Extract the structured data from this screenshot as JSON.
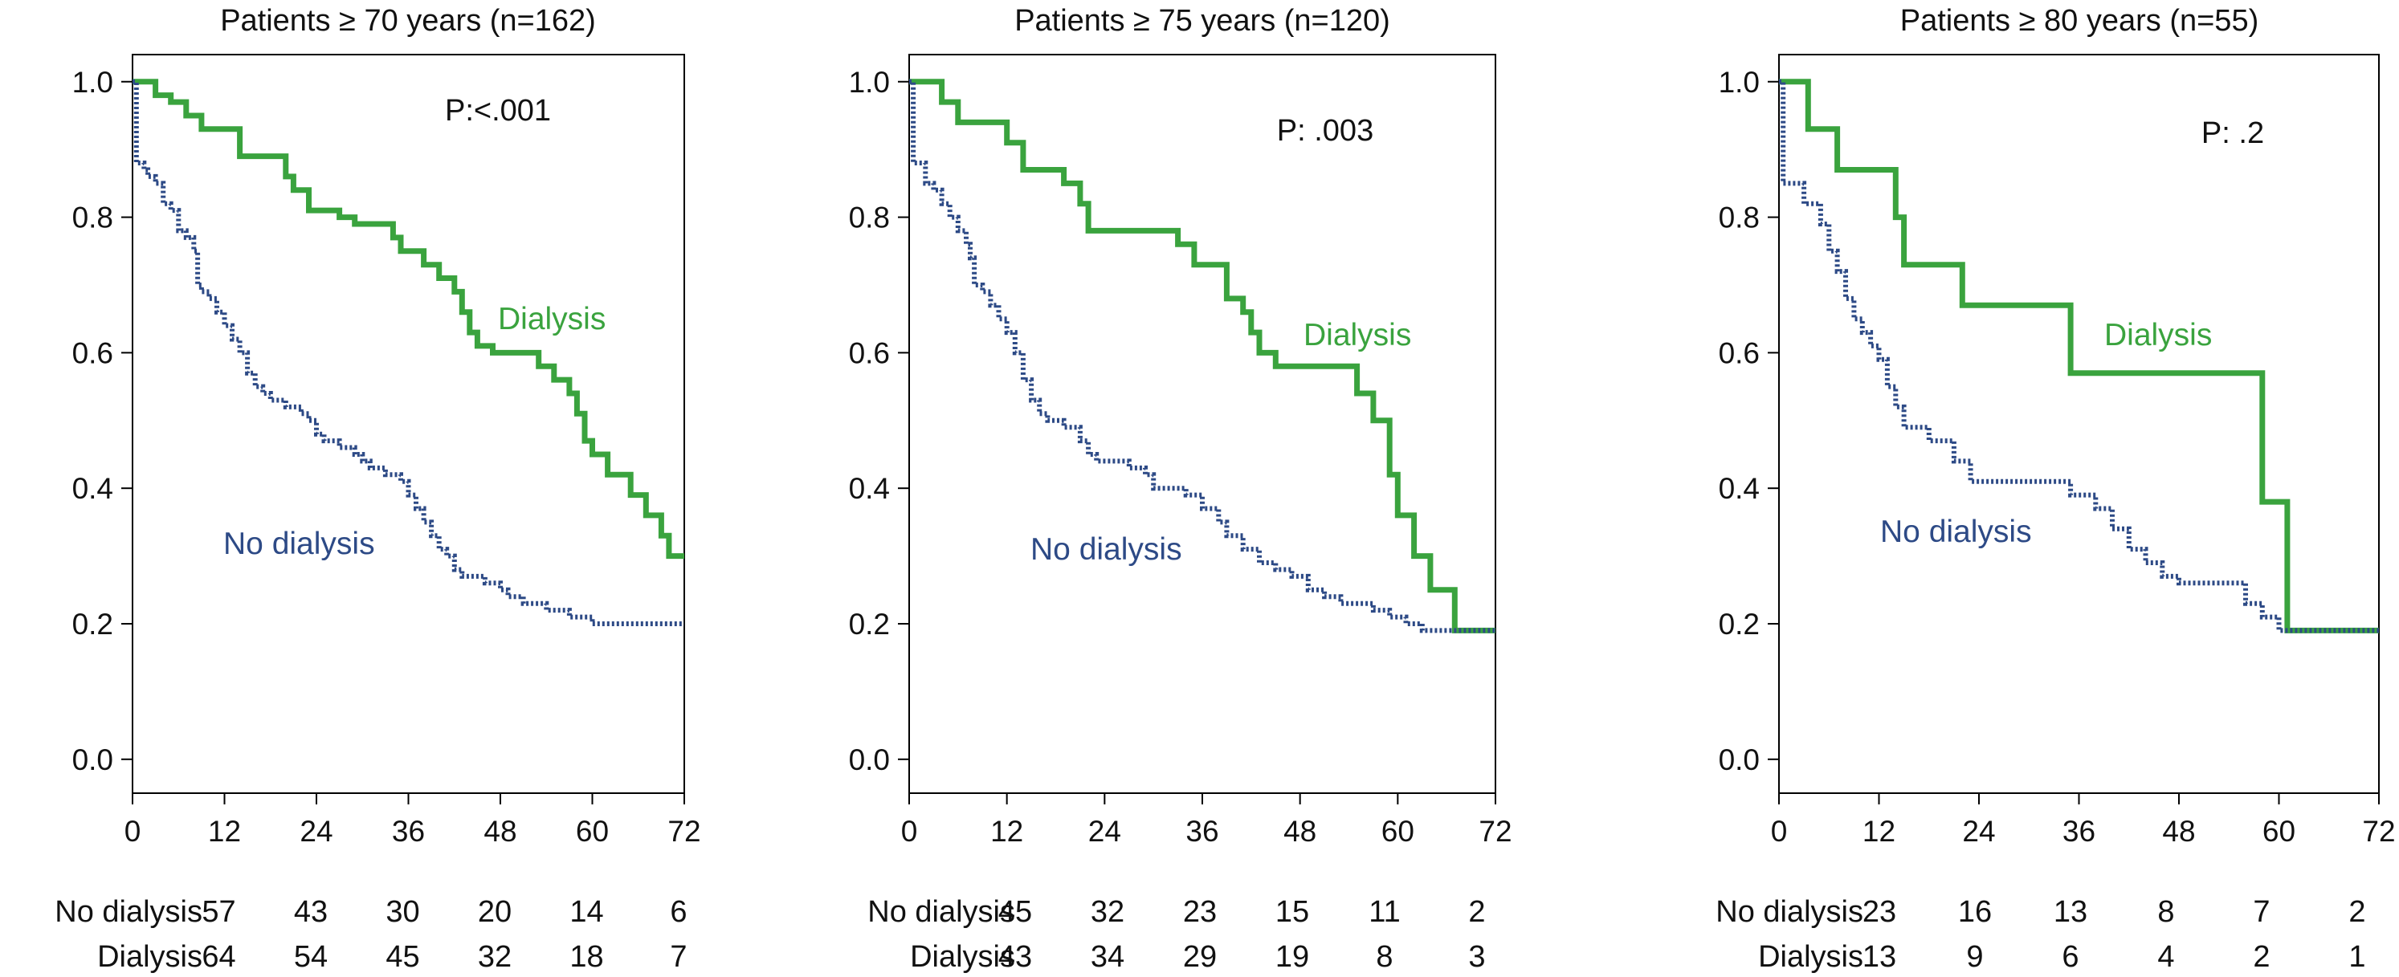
{
  "colors": {
    "dialysis": "#3aa33e",
    "no_dialysis": "#2d4a86",
    "axis": "#000000",
    "text": "#111111"
  },
  "chart_data": [
    {
      "type": "line",
      "title": "Patients ≥ 70 years (n=162)",
      "p_value": "P:<.001",
      "xticks": [
        "0",
        "12",
        "24",
        "36",
        "48",
        "60",
        "72"
      ],
      "yticks": [
        "0.0",
        "0.2",
        "0.4",
        "0.6",
        "0.8",
        "1.0"
      ],
      "xlim": [
        0,
        72
      ],
      "ylim": [
        -0.05,
        1.04
      ],
      "series": [
        {
          "name": "Dialysis",
          "style": "solid",
          "points": [
            [
              0,
              1.0
            ],
            [
              3,
              0.98
            ],
            [
              5,
              0.97
            ],
            [
              7,
              0.95
            ],
            [
              9,
              0.93
            ],
            [
              14,
              0.89
            ],
            [
              20,
              0.86
            ],
            [
              21,
              0.84
            ],
            [
              23,
              0.81
            ],
            [
              27,
              0.8
            ],
            [
              29,
              0.79
            ],
            [
              34,
              0.77
            ],
            [
              35,
              0.75
            ],
            [
              38,
              0.73
            ],
            [
              40,
              0.71
            ],
            [
              42,
              0.69
            ],
            [
              43,
              0.66
            ],
            [
              44,
              0.63
            ],
            [
              45,
              0.61
            ],
            [
              47,
              0.6
            ],
            [
              53,
              0.58
            ],
            [
              55,
              0.56
            ],
            [
              57,
              0.54
            ],
            [
              58,
              0.51
            ],
            [
              59,
              0.47
            ],
            [
              60,
              0.45
            ],
            [
              62,
              0.42
            ],
            [
              65,
              0.39
            ],
            [
              67,
              0.36
            ],
            [
              69,
              0.33
            ],
            [
              70,
              0.3
            ],
            [
              72,
              0.3
            ]
          ]
        },
        {
          "name": "No dialysis",
          "style": "dotted",
          "points": [
            [
              0,
              1.0
            ],
            [
              0.5,
              0.88
            ],
            [
              1.5,
              0.87
            ],
            [
              2,
              0.86
            ],
            [
              3,
              0.85
            ],
            [
              4,
              0.82
            ],
            [
              5,
              0.81
            ],
            [
              6,
              0.78
            ],
            [
              7,
              0.77
            ],
            [
              8,
              0.75
            ],
            [
              8.5,
              0.7
            ],
            [
              9,
              0.69
            ],
            [
              10,
              0.68
            ],
            [
              11,
              0.66
            ],
            [
              12,
              0.64
            ],
            [
              13,
              0.62
            ],
            [
              14,
              0.6
            ],
            [
              15,
              0.57
            ],
            [
              16,
              0.55
            ],
            [
              17,
              0.54
            ],
            [
              18,
              0.53
            ],
            [
              20,
              0.52
            ],
            [
              22,
              0.51
            ],
            [
              23,
              0.5
            ],
            [
              24,
              0.48
            ],
            [
              25,
              0.47
            ],
            [
              27,
              0.46
            ],
            [
              29,
              0.45
            ],
            [
              30,
              0.44
            ],
            [
              31,
              0.43
            ],
            [
              33,
              0.42
            ],
            [
              35,
              0.41
            ],
            [
              36,
              0.39
            ],
            [
              37,
              0.37
            ],
            [
              38,
              0.35
            ],
            [
              39,
              0.33
            ],
            [
              40,
              0.31
            ],
            [
              41,
              0.3
            ],
            [
              42,
              0.28
            ],
            [
              43,
              0.27
            ],
            [
              46,
              0.26
            ],
            [
              48,
              0.25
            ],
            [
              49,
              0.24
            ],
            [
              51,
              0.23
            ],
            [
              54,
              0.22
            ],
            [
              57,
              0.21
            ],
            [
              60,
              0.2
            ],
            [
              72,
              0.2
            ]
          ]
        }
      ],
      "labels": {
        "dialysis": "Dialysis",
        "no_dialysis": "No dialysis"
      },
      "risk_table": {
        "rows": [
          {
            "label": "No dialysis",
            "values": [
              "57",
              "43",
              "30",
              "20",
              "14",
              "6"
            ]
          },
          {
            "label": "Dialysis",
            "values": [
              "64",
              "54",
              "45",
              "32",
              "18",
              "7"
            ]
          }
        ]
      }
    },
    {
      "type": "line",
      "title": "Patients ≥ 75 years (n=120)",
      "p_value": "P: .003",
      "xticks": [
        "0",
        "12",
        "24",
        "36",
        "48",
        "60",
        "72"
      ],
      "yticks": [
        "0.0",
        "0.2",
        "0.4",
        "0.6",
        "0.8",
        "1.0"
      ],
      "xlim": [
        0,
        72
      ],
      "ylim": [
        -0.05,
        1.04
      ],
      "series": [
        {
          "name": "Dialysis",
          "style": "solid",
          "points": [
            [
              0,
              1.0
            ],
            [
              4,
              0.97
            ],
            [
              6,
              0.94
            ],
            [
              12,
              0.91
            ],
            [
              14,
              0.87
            ],
            [
              19,
              0.85
            ],
            [
              21,
              0.82
            ],
            [
              22,
              0.78
            ],
            [
              33,
              0.76
            ],
            [
              35,
              0.73
            ],
            [
              39,
              0.68
            ],
            [
              41,
              0.66
            ],
            [
              42,
              0.63
            ],
            [
              43,
              0.6
            ],
            [
              45,
              0.58
            ],
            [
              55,
              0.54
            ],
            [
              57,
              0.5
            ],
            [
              59,
              0.42
            ],
            [
              60,
              0.36
            ],
            [
              62,
              0.3
            ],
            [
              64,
              0.25
            ],
            [
              67,
              0.19
            ],
            [
              72,
              0.19
            ]
          ]
        },
        {
          "name": "No dialysis",
          "style": "dotted",
          "points": [
            [
              0,
              1.0
            ],
            [
              0.5,
              0.88
            ],
            [
              2,
              0.85
            ],
            [
              3,
              0.84
            ],
            [
              4,
              0.82
            ],
            [
              5,
              0.8
            ],
            [
              6,
              0.78
            ],
            [
              7,
              0.76
            ],
            [
              7.5,
              0.74
            ],
            [
              8,
              0.7
            ],
            [
              9,
              0.69
            ],
            [
              10,
              0.67
            ],
            [
              11,
              0.65
            ],
            [
              12,
              0.63
            ],
            [
              13,
              0.6
            ],
            [
              14,
              0.56
            ],
            [
              15,
              0.53
            ],
            [
              16,
              0.51
            ],
            [
              17,
              0.5
            ],
            [
              19,
              0.49
            ],
            [
              21,
              0.47
            ],
            [
              22,
              0.45
            ],
            [
              23,
              0.44
            ],
            [
              27,
              0.43
            ],
            [
              29,
              0.42
            ],
            [
              30,
              0.4
            ],
            [
              34,
              0.39
            ],
            [
              36,
              0.37
            ],
            [
              38,
              0.35
            ],
            [
              39,
              0.33
            ],
            [
              41,
              0.31
            ],
            [
              43,
              0.29
            ],
            [
              45,
              0.28
            ],
            [
              47,
              0.27
            ],
            [
              49,
              0.25
            ],
            [
              51,
              0.24
            ],
            [
              53,
              0.23
            ],
            [
              57,
              0.22
            ],
            [
              59,
              0.21
            ],
            [
              61,
              0.2
            ],
            [
              63,
              0.19
            ],
            [
              72,
              0.19
            ]
          ]
        }
      ],
      "labels": {
        "dialysis": "Dialysis",
        "no_dialysis": "No dialysis"
      },
      "risk_table": {
        "rows": [
          {
            "label": "No dialysis",
            "values": [
              "45",
              "32",
              "23",
              "15",
              "11",
              "2"
            ]
          },
          {
            "label": "Dialysis",
            "values": [
              "43",
              "34",
              "29",
              "19",
              "8",
              "3"
            ]
          }
        ]
      }
    },
    {
      "type": "line",
      "title": "Patients ≥ 80 years (n=55)",
      "p_value": "P: .2",
      "xticks": [
        "0",
        "12",
        "24",
        "36",
        "48",
        "60",
        "72"
      ],
      "yticks": [
        "0.0",
        "0.2",
        "0.4",
        "0.6",
        "0.8",
        "1.0"
      ],
      "xlim": [
        0,
        72
      ],
      "ylim": [
        -0.05,
        1.04
      ],
      "series": [
        {
          "name": "Dialysis",
          "style": "solid",
          "points": [
            [
              0,
              1.0
            ],
            [
              3.5,
              0.93
            ],
            [
              7,
              0.87
            ],
            [
              14,
              0.8
            ],
            [
              15,
              0.73
            ],
            [
              22,
              0.67
            ],
            [
              35,
              0.57
            ],
            [
              58,
              0.38
            ],
            [
              61,
              0.19
            ],
            [
              72,
              0.19
            ]
          ]
        },
        {
          "name": "No dialysis",
          "style": "dotted",
          "points": [
            [
              0,
              1.0
            ],
            [
              0.5,
              0.85
            ],
            [
              3,
              0.82
            ],
            [
              5,
              0.79
            ],
            [
              6,
              0.75
            ],
            [
              7,
              0.72
            ],
            [
              8,
              0.68
            ],
            [
              9,
              0.65
            ],
            [
              10,
              0.63
            ],
            [
              11,
              0.61
            ],
            [
              12,
              0.59
            ],
            [
              13,
              0.55
            ],
            [
              14,
              0.52
            ],
            [
              15,
              0.49
            ],
            [
              18,
              0.47
            ],
            [
              21,
              0.44
            ],
            [
              23,
              0.41
            ],
            [
              35,
              0.39
            ],
            [
              38,
              0.37
            ],
            [
              40,
              0.34
            ],
            [
              42,
              0.31
            ],
            [
              44,
              0.29
            ],
            [
              46,
              0.27
            ],
            [
              48,
              0.26
            ],
            [
              56,
              0.23
            ],
            [
              58,
              0.21
            ],
            [
              60,
              0.19
            ],
            [
              72,
              0.19
            ]
          ]
        }
      ],
      "labels": {
        "dialysis": "Dialysis",
        "no_dialysis": "No dialysis"
      },
      "risk_table": {
        "rows": [
          {
            "label": "No dialysis",
            "values": [
              "23",
              "16",
              "13",
              "8",
              "7",
              "2"
            ]
          },
          {
            "label": "Dialysis",
            "values": [
              "13",
              "9",
              "6",
              "4",
              "2",
              "1"
            ]
          }
        ]
      }
    }
  ]
}
